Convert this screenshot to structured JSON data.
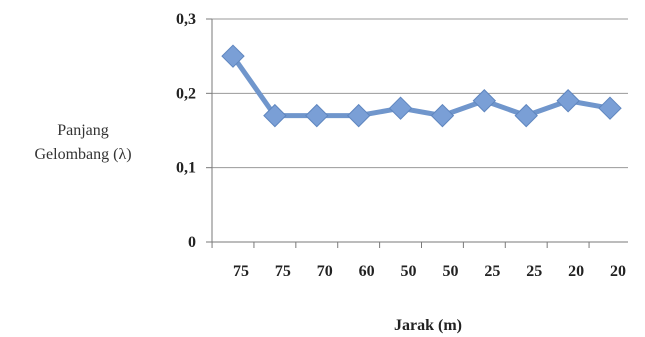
{
  "chart_data": {
    "type": "line",
    "ylabel_lines": [
      "Panjang",
      "Gelombang (λ)"
    ],
    "xlabel": "Jarak (m)",
    "categories": [
      "75",
      "75",
      "70",
      "60",
      "50",
      "50",
      "25",
      "25",
      "20",
      "20"
    ],
    "values": [
      0.25,
      0.17,
      0.17,
      0.17,
      0.18,
      0.17,
      0.19,
      0.17,
      0.19,
      0.18
    ],
    "ylim": [
      0,
      0.3
    ],
    "yticks": [
      0,
      0.1,
      0.2,
      0.3
    ],
    "ytick_labels": [
      "0",
      "0,1",
      "0,2",
      "0,3"
    ],
    "grid": true,
    "colors": {
      "line": "#7096cc",
      "marker": "#7a9fd6",
      "grid": "#9a9a9a",
      "axis": "#7a7a7a"
    }
  }
}
